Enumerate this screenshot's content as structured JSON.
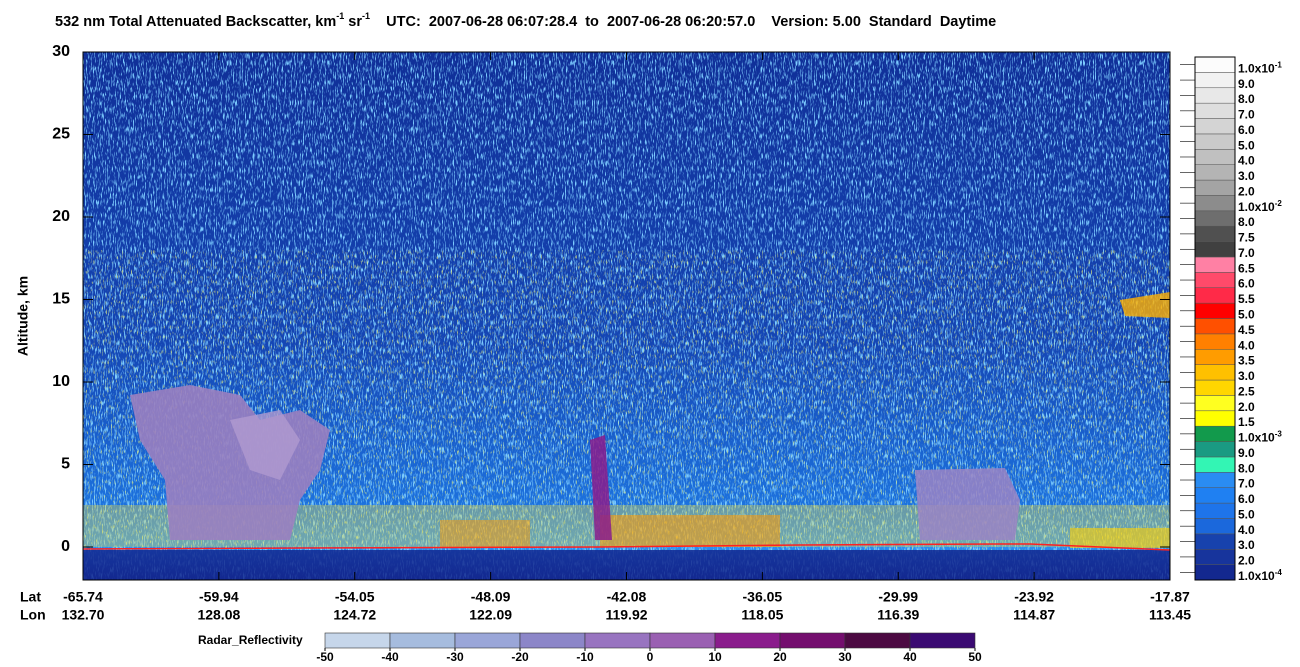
{
  "chart_data": {
    "type": "curtain",
    "title": [
      {
        "text": "532 nm Total Attenuated Backscatter, km",
        "sup": false
      },
      {
        "text": "-1",
        "sup": true
      },
      {
        "text": " sr",
        "sup": false
      },
      {
        "text": "-1",
        "sup": true
      },
      {
        "text": "    UTC:  2007-06-28 06:07:28.4  to  2007-06-28 06:20:57.0    Version: 5.00  Standard  Daytime",
        "sup": false
      }
    ],
    "ylabel": "Altitude, km",
    "ylim": [
      -2,
      30
    ],
    "yticks": [
      0,
      5,
      10,
      15,
      20,
      25,
      30
    ],
    "x_rows": [
      {
        "name": "Lat",
        "ticks": [
          -65.74,
          -59.94,
          -54.05,
          -48.09,
          -42.08,
          -36.05,
          -29.99,
          -23.92,
          -17.87
        ]
      },
      {
        "name": "Lon",
        "ticks": [
          {
            "value": 132.7,
            "label": "132.70"
          },
          128.08,
          124.72,
          122.09,
          119.92,
          118.05,
          116.39,
          114.87,
          113.45
        ]
      }
    ],
    "colorbar": [
      {
        "value": 0.0001,
        "label": "1.0x10",
        "sup": "-4",
        "color": "#13288f"
      },
      {
        "value": 0.0002,
        "label": "2.0",
        "color": "#17349c"
      },
      {
        "value": 0.0003,
        "label": "3.0",
        "color": "#1742ad"
      },
      {
        "value": 0.0004,
        "label": "4.0",
        "color": "#1b68dc"
      },
      {
        "value": 0.0005,
        "label": "5.0",
        "color": "#1e74ea"
      },
      {
        "value": 0.0006,
        "label": "6.0",
        "color": "#1f80f2"
      },
      {
        "value": 0.0007,
        "label": "7.0",
        "color": "#2a8cf2"
      },
      {
        "value": 0.0008,
        "label": "8.0",
        "color": "#33f5b4"
      },
      {
        "value": 0.0009,
        "label": "9.0",
        "color": "#1a9a82"
      },
      {
        "value": 0.001,
        "label": "1.0x10",
        "sup": "-3",
        "color": "#129a4c"
      },
      {
        "value": 0.0015,
        "label": "1.5",
        "color": "#ffff00"
      },
      {
        "value": 0.002,
        "label": "2.0",
        "color": "#ffff20"
      },
      {
        "value": 0.0025,
        "label": "2.5",
        "color": "#ffd600"
      },
      {
        "value": 0.003,
        "label": "3.0",
        "color": "#ffc000"
      },
      {
        "value": 0.0035,
        "label": "3.5",
        "color": "#ff9c00"
      },
      {
        "value": 0.004,
        "label": "4.0",
        "color": "#ff8000"
      },
      {
        "value": 0.0045,
        "label": "4.5",
        "color": "#ff5000"
      },
      {
        "value": 0.005,
        "label": "5.0",
        "color": "#ff0000"
      },
      {
        "value": 0.0055,
        "label": "5.5",
        "color": "#ff2a48"
      },
      {
        "value": 0.006,
        "label": "6.0",
        "color": "#ff4a6a"
      },
      {
        "value": 0.0065,
        "label": "6.5",
        "color": "#ff80a4"
      },
      {
        "value": 0.007,
        "label": "7.0",
        "color": "#404040"
      },
      {
        "value": 0.0075,
        "label": "7.5",
        "color": "#505050"
      },
      {
        "value": 0.008,
        "label": "8.0",
        "color": "#6e6e6e"
      },
      {
        "value": 0.01,
        "label": "1.0x10",
        "sup": "-2",
        "color": "#8c8c8c"
      },
      {
        "value": 0.02,
        "label": "2.0",
        "color": "#a4a4a4"
      },
      {
        "value": 0.03,
        "label": "3.0",
        "color": "#b4b4b4"
      },
      {
        "value": 0.04,
        "label": "4.0",
        "color": "#c0c0c0"
      },
      {
        "value": 0.05,
        "label": "5.0",
        "color": "#cacaca"
      },
      {
        "value": 0.06,
        "label": "6.0",
        "color": "#d4d4d4"
      },
      {
        "value": 0.07,
        "label": "7.0",
        "color": "#dedede"
      },
      {
        "value": 0.08,
        "label": "8.0",
        "color": "#e8e8e8"
      },
      {
        "value": 0.09,
        "label": "9.0",
        "color": "#f2f2f2"
      },
      {
        "value": 0.1,
        "label": "1.0x10",
        "sup": "-1",
        "color": "#fcfcfc"
      }
    ],
    "radar": {
      "name": "Radar_Reflectivity",
      "ticks": [
        -50,
        -40,
        -30,
        -20,
        -10,
        0,
        10,
        20,
        30,
        40,
        50
      ],
      "colors": [
        "#c6d6ea",
        "#a6bcde",
        "#9aa6d8",
        "#8c86c8",
        "#9874c0",
        "#9a60b2",
        "#8a1c8c",
        "#740e6e",
        "#4c0a42",
        "#3a0a72"
      ]
    }
  }
}
